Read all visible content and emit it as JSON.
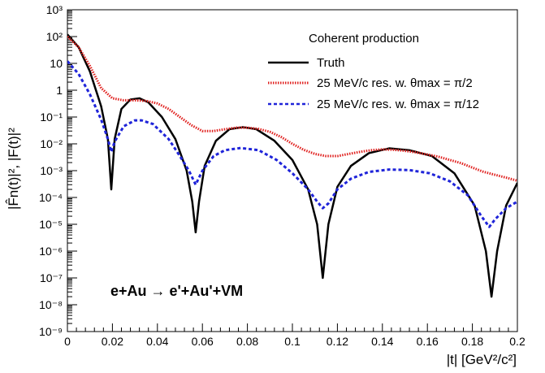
{
  "chart_data": {
    "type": "line",
    "title": "",
    "xlabel": "|t| [GeV²/c²]",
    "ylabel": "|F̂n(t)|², |F(t)|²",
    "xlim": [
      0,
      0.2
    ],
    "ylim": [
      1e-09,
      1000
    ],
    "yscale": "log",
    "grid": false,
    "legend_title": "Coherent production",
    "legend_position": "top-right",
    "annotation": "e+Au → e'+Au'+VM",
    "x_ticks": [
      "0",
      "0.02",
      "0.04",
      "0.06",
      "0.08",
      "0.1",
      "0.12",
      "0.14",
      "0.16",
      "0.18",
      "0.2"
    ],
    "y_ticks": [
      "10⁻⁹",
      "10⁻⁸",
      "10⁻⁷",
      "10⁻⁶",
      "10⁻⁵",
      "10⁻⁴",
      "10⁻³",
      "10⁻²",
      "10⁻¹",
      "1",
      "10",
      "10²",
      "10³"
    ],
    "series": [
      {
        "name": "Truth",
        "color": "#000000",
        "style": "solid",
        "x": [
          0,
          0.005,
          0.01,
          0.015,
          0.018,
          0.0195,
          0.021,
          0.024,
          0.028,
          0.032,
          0.036,
          0.042,
          0.048,
          0.053,
          0.0555,
          0.057,
          0.0585,
          0.061,
          0.066,
          0.072,
          0.078,
          0.084,
          0.092,
          0.1,
          0.107,
          0.111,
          0.1135,
          0.116,
          0.12,
          0.126,
          0.134,
          0.143,
          0.152,
          0.162,
          0.172,
          0.181,
          0.186,
          0.1885,
          0.191,
          0.195,
          0.2
        ],
        "y": [
          120,
          40,
          5,
          0.25,
          0.015,
          0.0002,
          0.015,
          0.2,
          0.45,
          0.5,
          0.35,
          0.1,
          0.015,
          0.001,
          7e-05,
          5e-06,
          7e-05,
          0.0015,
          0.013,
          0.035,
          0.042,
          0.035,
          0.013,
          0.0025,
          0.0002,
          1e-05,
          1e-07,
          1e-05,
          0.00025,
          0.0015,
          0.0045,
          0.0068,
          0.0058,
          0.0035,
          0.0008,
          5e-05,
          1e-06,
          2e-08,
          1e-06,
          5e-05,
          0.00035
        ]
      },
      {
        "name": "25 MeV/c res. w. θmax = π/2",
        "color": "#e0211f",
        "style": "dotted",
        "x": [
          0,
          0.005,
          0.01,
          0.015,
          0.02,
          0.025,
          0.03,
          0.035,
          0.04,
          0.045,
          0.05,
          0.055,
          0.06,
          0.065,
          0.07,
          0.075,
          0.08,
          0.085,
          0.09,
          0.095,
          0.1,
          0.105,
          0.11,
          0.115,
          0.12,
          0.125,
          0.13,
          0.135,
          0.14,
          0.145,
          0.15,
          0.155,
          0.16,
          0.165,
          0.17,
          0.175,
          0.18,
          0.185,
          0.19,
          0.195,
          0.2
        ],
        "y": [
          100,
          40,
          8,
          1.2,
          0.5,
          0.42,
          0.42,
          0.4,
          0.32,
          0.2,
          0.1,
          0.05,
          0.03,
          0.03,
          0.035,
          0.04,
          0.04,
          0.036,
          0.028,
          0.018,
          0.01,
          0.006,
          0.0042,
          0.0035,
          0.0035,
          0.0042,
          0.005,
          0.0058,
          0.0062,
          0.006,
          0.0055,
          0.0048,
          0.004,
          0.0033,
          0.0025,
          0.0019,
          0.0013,
          0.0009,
          0.0007,
          0.00055,
          0.00042
        ]
      },
      {
        "name": "25 MeV/c res. w. θmax = π/12",
        "color": "#1f24d9",
        "style": "dashed",
        "x": [
          0,
          0.005,
          0.01,
          0.015,
          0.018,
          0.0195,
          0.021,
          0.025,
          0.03,
          0.033,
          0.038,
          0.045,
          0.05,
          0.054,
          0.057,
          0.06,
          0.065,
          0.07,
          0.077,
          0.085,
          0.093,
          0.1,
          0.107,
          0.111,
          0.1135,
          0.116,
          0.12,
          0.126,
          0.134,
          0.143,
          0.152,
          0.161,
          0.17,
          0.178,
          0.184,
          0.1875,
          0.19,
          0.195,
          0.2
        ],
        "y": [
          12,
          4,
          0.7,
          0.08,
          0.015,
          0.005,
          0.012,
          0.045,
          0.075,
          0.075,
          0.055,
          0.015,
          0.0035,
          0.001,
          0.0003,
          0.001,
          0.0035,
          0.0058,
          0.007,
          0.0058,
          0.0025,
          0.0008,
          0.0002,
          7e-05,
          4e-05,
          6e-05,
          0.0002,
          0.0005,
          0.0009,
          0.0011,
          0.00105,
          0.0008,
          0.0004,
          0.00012,
          2e-05,
          8e-06,
          1.5e-05,
          4e-05,
          7e-05
        ]
      }
    ]
  }
}
